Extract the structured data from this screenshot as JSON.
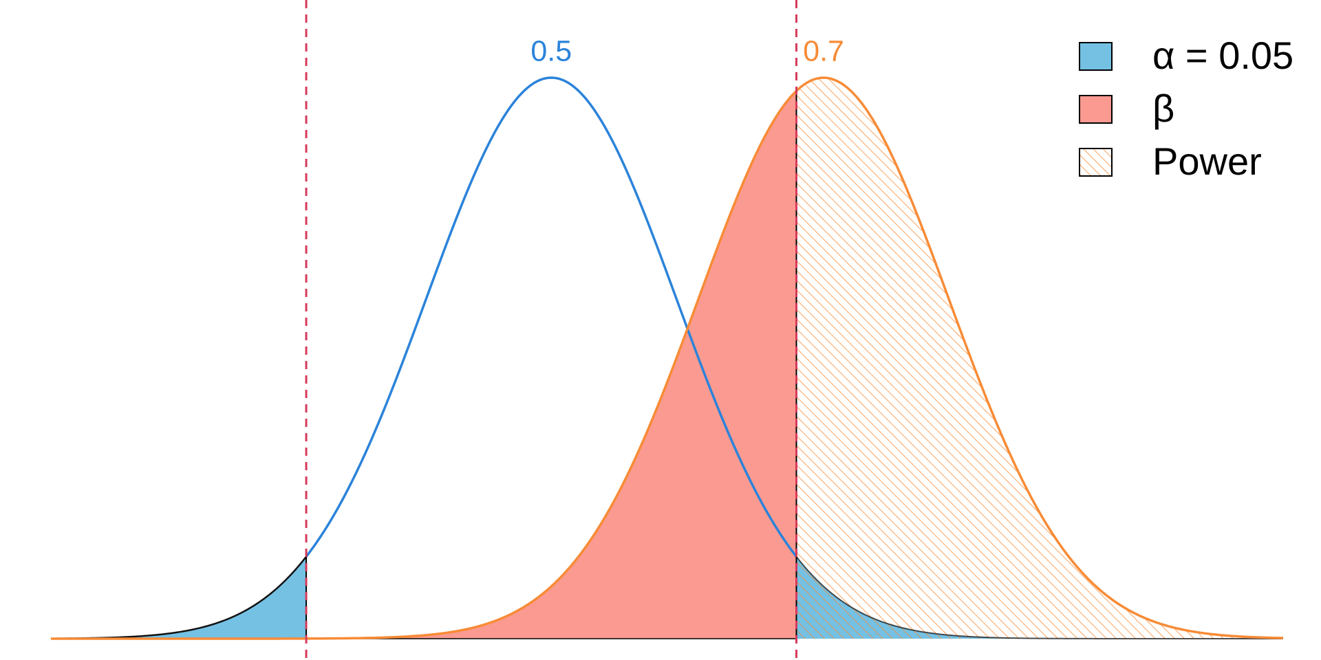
{
  "chart_data": {
    "type": "power-curves",
    "xlim": [
      0.1325,
      1.0375
    ],
    "sd": 0.0918,
    "critical": [
      0.32,
      0.68
    ],
    "critical_color": "#d63a5a",
    "null": {
      "mean": 0.5,
      "color": "#2b83da"
    },
    "alt": {
      "mean": 0.7,
      "color": "#f78b36"
    },
    "legend": [
      {
        "label": "α = 0.05",
        "color": "#74c1e4"
      },
      {
        "label": "β",
        "color": "#fb9a90"
      },
      {
        "label": "Power",
        "color": "#f78b36",
        "hatch": true
      }
    ]
  }
}
